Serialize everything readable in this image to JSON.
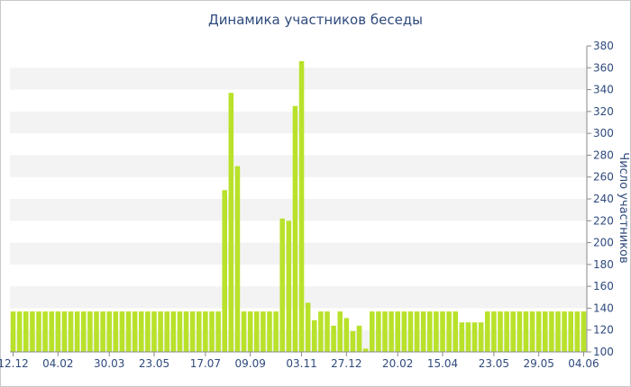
{
  "chart_data": {
    "type": "bar",
    "title": "Динамика участников беседы",
    "ylabel": "Число участников",
    "xlabel": "",
    "ylim": [
      100,
      380
    ],
    "y_ticks": [
      100,
      120,
      140,
      160,
      180,
      200,
      220,
      240,
      260,
      280,
      300,
      320,
      340,
      360,
      380
    ],
    "x_tick_labels": [
      {
        "label": "12.12",
        "bar_index": 0
      },
      {
        "label": "04.02",
        "bar_index": 7
      },
      {
        "label": "30.03",
        "bar_index": 15
      },
      {
        "label": "23.05",
        "bar_index": 22
      },
      {
        "label": "17.07",
        "bar_index": 30
      },
      {
        "label": "09.09",
        "bar_index": 37
      },
      {
        "label": "03.11",
        "bar_index": 45
      },
      {
        "label": "27.12",
        "bar_index": 52
      },
      {
        "label": "20.02",
        "bar_index": 60
      },
      {
        "label": "15.04",
        "bar_index": 67
      },
      {
        "label": "23.05",
        "bar_index": 75
      },
      {
        "label": "29.05",
        "bar_index": 82
      },
      {
        "label": "04.06",
        "bar_index": 89
      }
    ],
    "bar_color": "#b8e22a",
    "band_color": "#f3f3f3",
    "values": [
      137,
      137,
      137,
      137,
      137,
      137,
      137,
      137,
      137,
      137,
      137,
      137,
      137,
      137,
      137,
      137,
      137,
      137,
      137,
      137,
      137,
      137,
      137,
      137,
      137,
      137,
      137,
      137,
      137,
      137,
      137,
      137,
      137,
      248,
      337,
      270,
      137,
      137,
      137,
      137,
      137,
      137,
      222,
      220,
      325,
      366,
      145,
      129,
      137,
      137,
      124,
      137,
      131,
      119,
      124,
      103,
      137,
      137,
      137,
      137,
      137,
      137,
      137,
      137,
      137,
      137,
      137,
      137,
      137,
      137,
      127,
      127,
      127,
      127,
      137,
      137,
      137,
      137,
      137,
      137,
      137,
      137,
      137,
      137,
      137,
      137,
      137,
      137,
      137,
      137
    ]
  }
}
